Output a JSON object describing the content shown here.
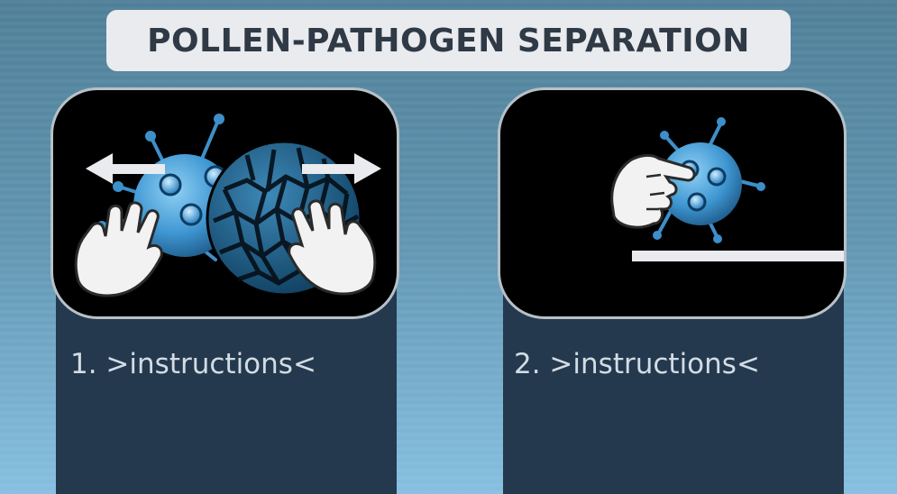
{
  "title": "POLLEN-PATHOGEN SEPARATION",
  "steps": [
    {
      "label": "1. >instructions<"
    },
    {
      "label": "2. >instructions<"
    }
  ],
  "icons": {
    "step1": [
      "pathogen-icon",
      "pollen-icon",
      "hand-icon",
      "arrow-left-icon",
      "arrow-right-icon"
    ],
    "step2": [
      "pathogen-icon",
      "pointing-hand-icon",
      "surface-line"
    ]
  },
  "colors": {
    "title_bg": "#e9ebee",
    "title_text": "#2f3a46",
    "panel": "#24394e",
    "card": "#000000",
    "pathogen": "#4aa7e0",
    "pollen": "#1e5f86"
  }
}
